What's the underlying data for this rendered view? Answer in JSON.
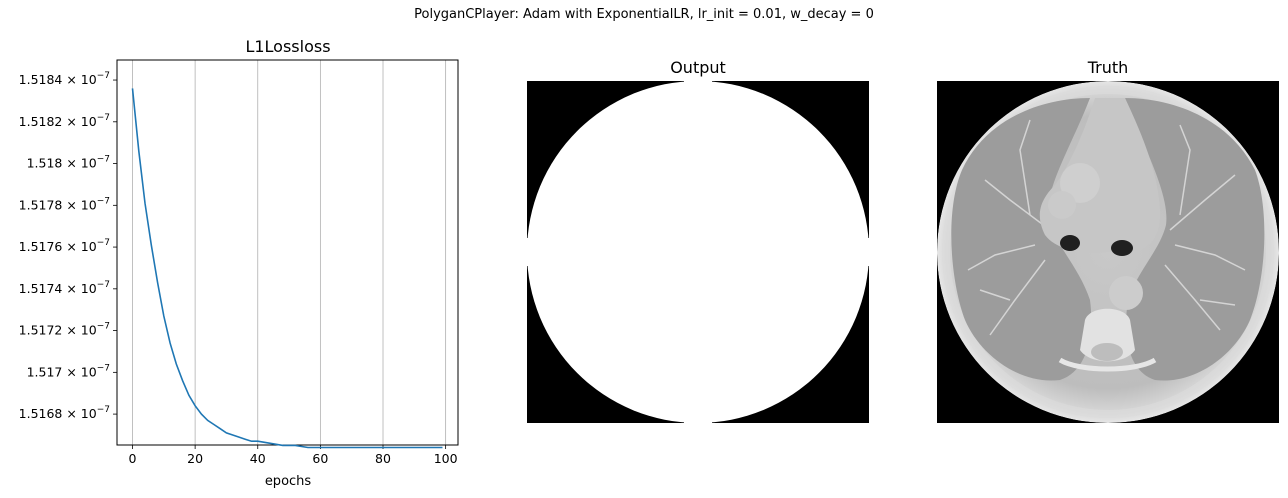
{
  "suptitle": "PolyganCPlayer: Adam with ExponentialLR, lr_init = 0.01, w_decay =  0",
  "panels": {
    "output_title": "Output",
    "truth_title": "Truth"
  },
  "chart_data": {
    "type": "line",
    "title": "L1Lossloss",
    "xlabel": "epochs",
    "ylabel": "",
    "grid": "x-only",
    "color": "#1f77b4",
    "xlim": [
      -4.95,
      103.95
    ],
    "ylim": [
      1.516652e-07,
      1.518496e-07
    ],
    "xticks": [
      0,
      20,
      40,
      60,
      80,
      100
    ],
    "yticks": [
      {
        "value": 1.5168e-07,
        "mantissa": "1.5168"
      },
      {
        "value": 1.517e-07,
        "mantissa": "1.517"
      },
      {
        "value": 1.5172e-07,
        "mantissa": "1.5172"
      },
      {
        "value": 1.5174e-07,
        "mantissa": "1.5174"
      },
      {
        "value": 1.5176e-07,
        "mantissa": "1.5176"
      },
      {
        "value": 1.5178e-07,
        "mantissa": "1.5178"
      },
      {
        "value": 1.518e-07,
        "mantissa": "1.518"
      },
      {
        "value": 1.5182e-07,
        "mantissa": "1.5182"
      },
      {
        "value": 1.5184e-07,
        "mantissa": "1.5184"
      }
    ],
    "ytick_suffix": "× 10",
    "ytick_exponent": "−7",
    "series": [
      {
        "x": [
          0,
          2,
          4,
          6,
          8,
          10,
          12,
          14,
          16,
          18,
          20,
          22,
          24,
          26,
          28,
          30,
          32,
          34,
          36,
          38,
          40,
          44,
          48,
          52,
          56,
          60,
          66,
          72,
          80,
          90,
          99
        ],
        "y": [
          1.51836e-07,
          1.51806e-07,
          1.51781e-07,
          1.51761e-07,
          1.51743e-07,
          1.51727e-07,
          1.51714e-07,
          1.51704e-07,
          1.51696e-07,
          1.51689e-07,
          1.51684e-07,
          1.5168e-07,
          1.51677e-07,
          1.51675e-07,
          1.51673e-07,
          1.51671e-07,
          1.5167e-07,
          1.51669e-07,
          1.51668e-07,
          1.51667e-07,
          1.51667e-07,
          1.51666e-07,
          1.51665e-07,
          1.51665e-07,
          1.51664e-07,
          1.51664e-07,
          1.51664e-07,
          1.51664e-07,
          1.51664e-07,
          1.51664e-07,
          1.51664e-07
        ]
      }
    ]
  }
}
